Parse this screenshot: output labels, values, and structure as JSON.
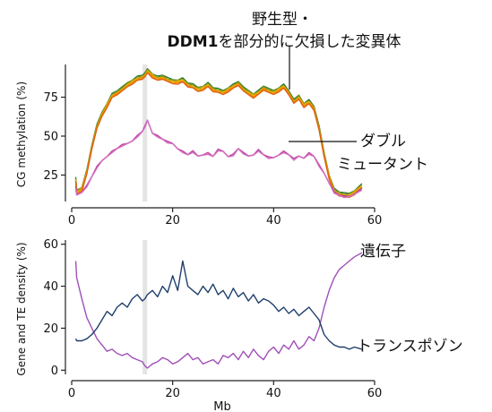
{
  "chart_data": [
    {
      "type": "line",
      "ylabel": "CG methylation (%)",
      "xlim": [
        0,
        60
      ],
      "ylim": [
        8,
        96
      ],
      "xticks": [
        0,
        20,
        40,
        60
      ],
      "yticks": [
        25,
        50,
        75
      ],
      "highlight_x": 14.5,
      "annotations": {
        "wildtype_line1": "野生型・",
        "wildtype_line2_bold": "DDM1",
        "wildtype_line2_rest": "を部分的に欠損した変異体",
        "double_mutant_line1": "ダブル",
        "double_mutant_line2": "ミュータント"
      },
      "colors": {
        "wildtype_group": [
          "#2e7d32",
          "#6b8e23",
          "#c9a600",
          "#e8a800",
          "#f08a00",
          "#e06010"
        ],
        "double_mutant": [
          "#c040a0",
          "#d070c0"
        ]
      },
      "series": [
        {
          "group": "wildtype",
          "x": [
            0.8,
            1,
            2,
            3,
            4,
            5,
            6,
            7,
            8,
            9,
            10,
            11,
            12,
            13,
            14,
            14.5,
            15,
            16,
            17,
            18,
            19,
            20,
            21,
            22,
            23,
            24,
            25,
            26,
            27,
            28,
            29,
            30,
            31,
            32,
            33,
            34,
            35,
            36,
            37,
            38,
            39,
            40,
            41,
            42,
            43,
            44,
            45,
            46,
            47,
            48,
            49,
            50,
            51,
            52,
            53,
            54,
            55,
            56,
            57.5
          ],
          "y": [
            22,
            14,
            16,
            27,
            43,
            56,
            64,
            70,
            76,
            78,
            80,
            83,
            85,
            87,
            88,
            89,
            92,
            89,
            87,
            88,
            86,
            85,
            85,
            86,
            83,
            82,
            80,
            81,
            83,
            80,
            79,
            78,
            80,
            82,
            84,
            80,
            78,
            76,
            78,
            81,
            79,
            78,
            80,
            82,
            78,
            72,
            75,
            70,
            72,
            68,
            55,
            38,
            24,
            15,
            13,
            12,
            12,
            14,
            18
          ]
        },
        {
          "group": "double_mutant",
          "x": [
            0.8,
            1,
            2,
            3,
            4,
            5,
            6,
            7,
            8,
            9,
            10,
            11,
            12,
            13,
            14,
            14.5,
            15,
            16,
            17,
            18,
            19,
            20,
            21,
            22,
            23,
            24,
            25,
            26,
            27,
            28,
            29,
            30,
            31,
            32,
            33,
            34,
            35,
            36,
            37,
            38,
            39,
            40,
            41,
            42,
            43,
            44,
            45,
            46,
            47,
            48,
            49,
            50,
            51,
            52,
            53,
            54,
            55,
            56,
            57.5
          ],
          "y": [
            17,
            12,
            14,
            18,
            24,
            30,
            34,
            37,
            40,
            42,
            44,
            45,
            47,
            50,
            53,
            56,
            60,
            52,
            50,
            48,
            46,
            45,
            42,
            40,
            38,
            40,
            37,
            38,
            39,
            37,
            41,
            40,
            37,
            38,
            42,
            39,
            37,
            38,
            41,
            38,
            36,
            36,
            38,
            40,
            38,
            35,
            37,
            36,
            39,
            37,
            31,
            26,
            20,
            14,
            12,
            11,
            11,
            13,
            16
          ]
        }
      ]
    },
    {
      "type": "line",
      "xlabel": "Mb",
      "ylabel": "Gene and TE density (%)",
      "xlim": [
        0,
        60
      ],
      "ylim": [
        -2,
        62
      ],
      "xticks": [
        0,
        20,
        40,
        60
      ],
      "yticks": [
        0,
        20,
        40,
        60
      ],
      "highlight_x": 14.5,
      "annotations": {
        "genes": "遺伝子",
        "te": "トランスポゾン"
      },
      "colors": {
        "genes": "#a050b8",
        "te": "#1f3f6b"
      },
      "series": [
        {
          "name": "遺伝子",
          "x": [
            0.8,
            1,
            2,
            3,
            4,
            5,
            6,
            7,
            8,
            9,
            10,
            11,
            12,
            13,
            14,
            14.5,
            15,
            16,
            17,
            18,
            19,
            20,
            21,
            22,
            23,
            24,
            25,
            26,
            27,
            28,
            29,
            30,
            31,
            32,
            33,
            34,
            35,
            36,
            37,
            38,
            39,
            40,
            41,
            42,
            43,
            44,
            45,
            46,
            47,
            48,
            49,
            50,
            51,
            52,
            53,
            54,
            55,
            56,
            57.5
          ],
          "y": [
            52,
            44,
            34,
            25,
            20,
            15,
            12,
            9,
            10,
            8,
            7,
            8,
            6,
            5,
            4,
            2,
            1,
            3,
            4,
            6,
            5,
            3,
            4,
            6,
            8,
            5,
            6,
            3,
            4,
            5,
            3,
            7,
            6,
            8,
            5,
            9,
            6,
            10,
            7,
            5,
            9,
            11,
            8,
            12,
            10,
            14,
            10,
            12,
            16,
            14,
            20,
            30,
            38,
            44,
            48,
            50,
            52,
            54,
            56
          ]
        },
        {
          "name": "トランスポゾン",
          "x": [
            0.8,
            1,
            2,
            3,
            4,
            5,
            6,
            7,
            8,
            9,
            10,
            11,
            12,
            13,
            14,
            14.5,
            15,
            16,
            17,
            18,
            19,
            20,
            21,
            22,
            23,
            24,
            25,
            26,
            27,
            28,
            29,
            30,
            31,
            32,
            33,
            34,
            35,
            36,
            37,
            38,
            39,
            40,
            41,
            42,
            43,
            44,
            45,
            46,
            47,
            48,
            49,
            50,
            51,
            52,
            53,
            54,
            55,
            56,
            57.5
          ],
          "y": [
            15,
            14,
            14,
            15,
            17,
            20,
            24,
            28,
            26,
            30,
            32,
            30,
            34,
            36,
            33,
            34,
            36,
            38,
            35,
            40,
            37,
            45,
            38,
            52,
            40,
            38,
            36,
            40,
            37,
            41,
            36,
            38,
            34,
            39,
            35,
            37,
            33,
            36,
            32,
            34,
            33,
            31,
            28,
            30,
            27,
            29,
            26,
            28,
            30,
            27,
            24,
            17,
            14,
            12,
            11,
            11,
            10,
            11,
            10
          ]
        }
      ]
    }
  ]
}
